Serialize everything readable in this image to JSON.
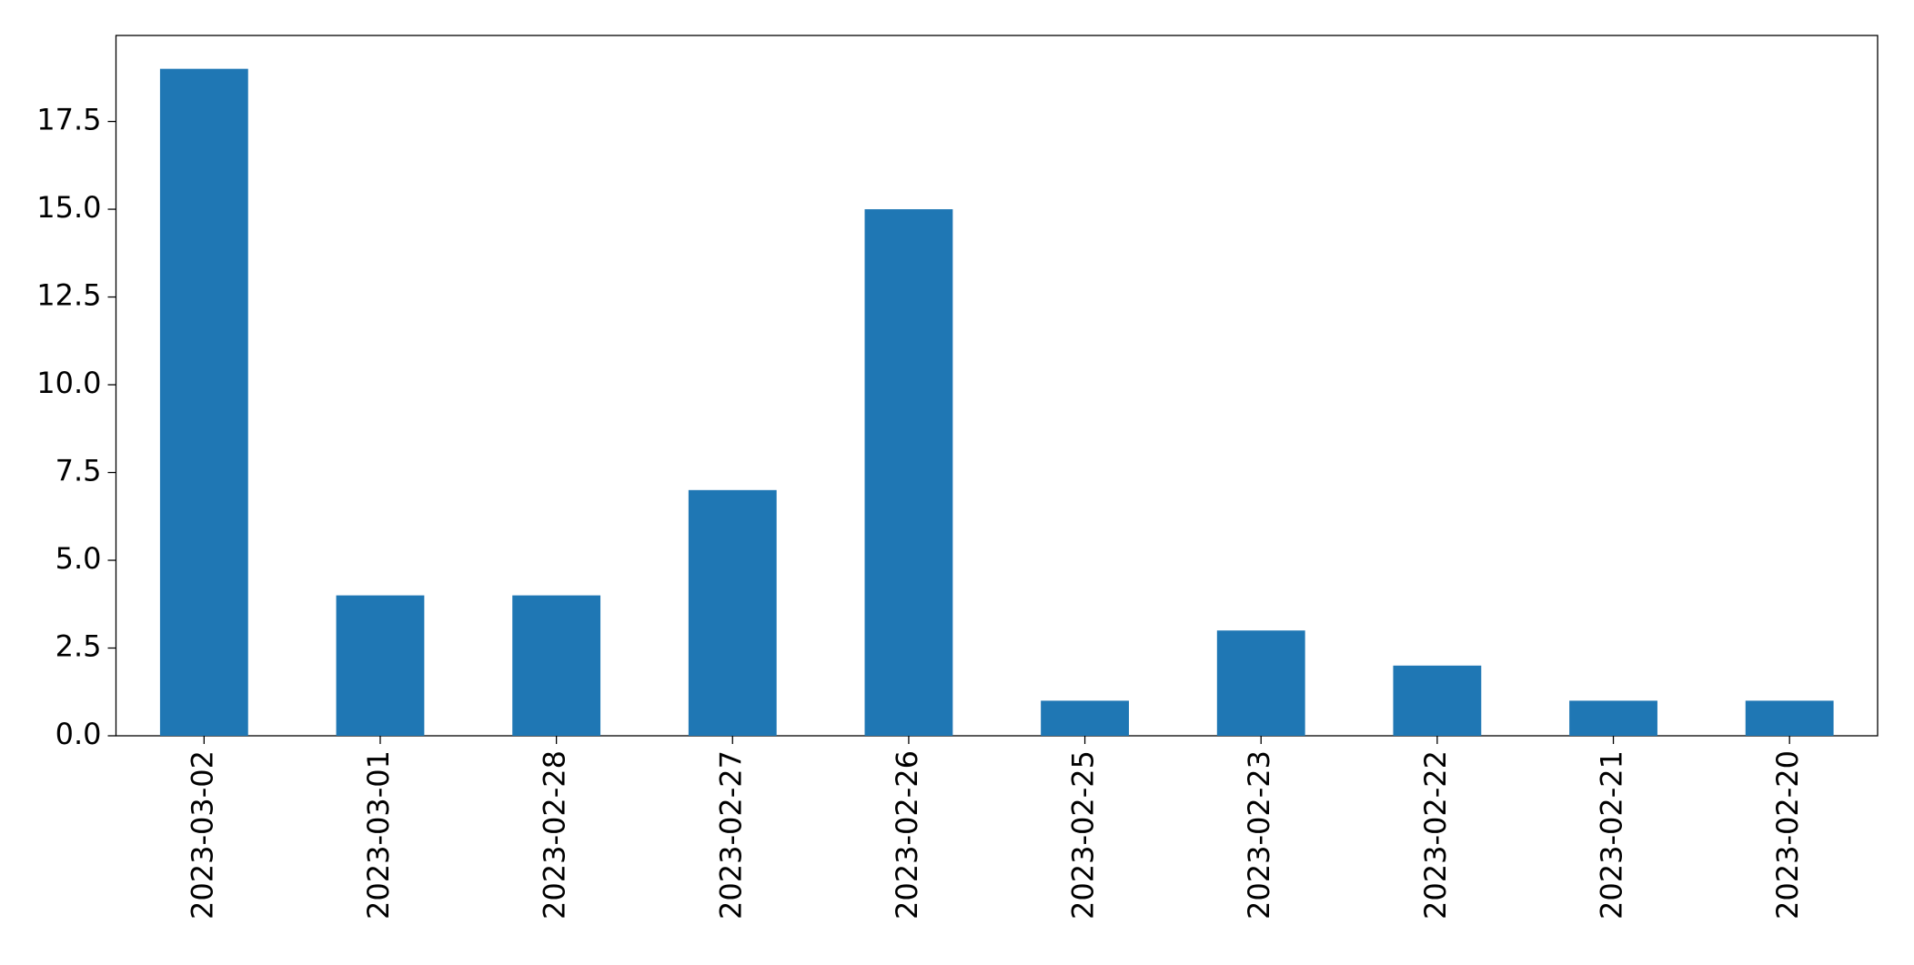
{
  "chart_data": {
    "type": "bar",
    "categories": [
      "2023-03-02",
      "2023-03-01",
      "2023-02-28",
      "2023-02-27",
      "2023-02-26",
      "2023-02-25",
      "2023-02-23",
      "2023-02-22",
      "2023-02-21",
      "2023-02-20"
    ],
    "values": [
      19,
      4,
      4,
      7,
      15,
      1,
      3,
      2,
      1,
      1
    ],
    "color": "#1f77b4",
    "ylim": [
      0,
      19.95
    ],
    "yticks": [
      {
        "value": 0,
        "label": "0.0"
      },
      2.5,
      {
        "value": 5,
        "label": "5.0"
      },
      7.5,
      {
        "value": 10,
        "label": "10.0"
      },
      12.5,
      {
        "value": 15,
        "label": "15.0"
      },
      17.5
    ],
    "grid": false
  }
}
